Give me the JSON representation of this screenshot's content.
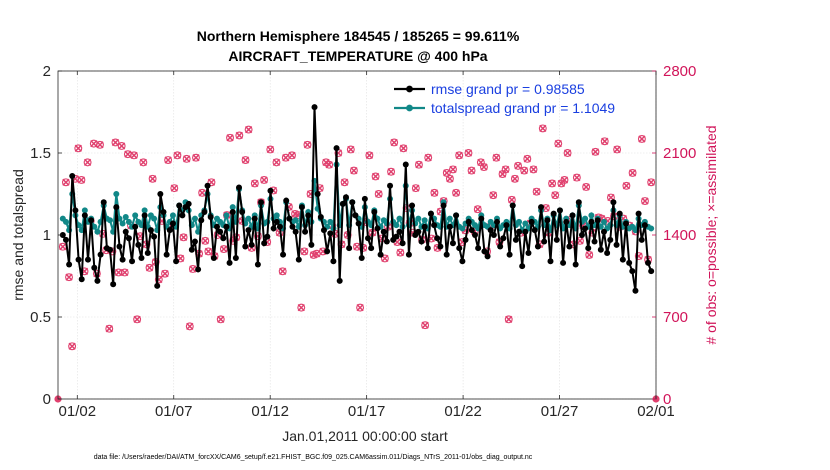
{
  "chart_data": {
    "type": "line",
    "title": "Northern Hemisphere 184545 / 185265 = 99.611%",
    "subtitle": "AIRCRAFT_TEMPERATURE @ 400 hPa",
    "xlabel": "Jan.01,2011 00:00:00 start",
    "ylabel_left": "rmse and totalspread",
    "ylabel_right": "# of obs: o=possible; ×=assimilated",
    "x_range": [
      0,
      31
    ],
    "y_left_range": [
      0,
      2
    ],
    "y_right_range": [
      0,
      2800
    ],
    "x_tick_positions": [
      1,
      6,
      11,
      16,
      21,
      26,
      31
    ],
    "x_tick_labels": [
      "01/02",
      "01/07",
      "01/12",
      "01/17",
      "01/22",
      "01/27",
      "02/01"
    ],
    "y_left_ticks": [
      0,
      0.5,
      1,
      1.5,
      2
    ],
    "y_left_tick_labels": [
      "0",
      "0.5",
      "1",
      "1.5",
      "2"
    ],
    "y_right_ticks": [
      0,
      700,
      1400,
      2100,
      2800
    ],
    "y_right_tick_labels": [
      "0",
      "700",
      "1400",
      "2100",
      "2800"
    ],
    "grid": true,
    "legend_position": "top-right",
    "footnote": "data file: /Users/raeder/DAI/ATM_forcXX/CAM6_setup/f.e21.FHIST_BGC.f09_025.CAM6assim.011/Diags_NTrS_2011-01/obs_diag_output.nc",
    "series": [
      {
        "name": "rmse grand pr = 0.98585",
        "color": "#000000",
        "axis": "left",
        "values": [
          1.0,
          0.97,
          0.82,
          1.36,
          1.15,
          0.85,
          0.73,
          1.12,
          0.85,
          1.09,
          0.8,
          0.72,
          0.88,
          1.2,
          0.92,
          0.91,
          0.7,
          1.17,
          0.93,
          0.85,
          1.02,
          0.98,
          0.84,
          1.05,
          0.94,
          0.86,
          1.12,
          0.89,
          1.03,
          0.99,
          0.69,
          1.25,
          1.14,
          0.88,
          1.03,
          1.07,
          0.84,
          1.18,
          1.12,
          1.17,
          1.19,
          0.91,
          0.96,
          0.79,
          1.09,
          1.14,
          1.3,
          1.11,
          0.86,
          1.05,
          1.02,
          0.98,
          1.05,
          0.83,
          1.14,
          0.86,
          1.29,
          1.14,
          0.93,
          1.03,
          0.94,
          1.1,
          0.82,
          1.2,
          0.95,
          0.99,
          1.27,
          1.04,
          1.08,
          1.05,
          0.88,
          1.21,
          1.1,
          1.05,
          1.02,
          0.85,
          1.17,
          1.02,
          1.12,
          0.94,
          1.78,
          1.25,
          1.11,
          1.03,
          0.9,
          1.01,
          0.84,
          1.53,
          0.72,
          1.19,
          1.23,
          0.92,
          1.2,
          1.12,
          1.07,
          0.86,
          1.22,
          0.98,
          0.92,
          1.14,
          1.04,
          0.88,
          1.02,
          0.96,
          1.3,
          0.97,
          0.99,
          1.02,
          0.95,
          1.43,
          0.88,
          1.18,
          1.0,
          1.02,
          0.96,
          1.05,
          0.92,
          1.13,
          1.06,
          0.98,
          0.93,
          1.18,
          0.88,
          1.05,
          0.95,
          1.12,
          0.92,
          0.84,
          0.97,
          1.08,
          1.03,
          1.0,
          0.92,
          1.1,
          0.9,
          0.87,
          1.03,
          1.0,
          1.08,
          0.93,
          0.98,
          1.06,
          0.88,
          1.18,
          0.97,
          1.02,
          0.81,
          1.02,
          0.89,
          1.08,
          1.03,
          0.93,
          1.17,
          0.96,
          1.09,
          0.84,
          1.13,
          0.97,
          1.15,
          0.83,
          1.08,
          0.93,
          1.12,
          0.82,
          1.2,
          1.0,
          1.04,
          0.92,
          1.08,
          0.96,
          1.09,
          0.91,
          1.02,
          0.89,
          0.97,
          1.2,
          0.94,
          1.13,
          0.85,
          1.07,
          0.83,
          0.78,
          0.66,
          1.13,
          0.97,
          1.06,
          0.83,
          0.78
        ]
      },
      {
        "name": "totalspread grand pr = 1.1049",
        "color": "#118888",
        "axis": "left",
        "values": [
          1.1,
          1.08,
          1.03,
          1.25,
          1.12,
          1.06,
          1.03,
          1.15,
          1.08,
          1.1,
          1.05,
          1.02,
          1.08,
          1.18,
          1.1,
          1.09,
          1.02,
          1.25,
          1.1,
          1.07,
          1.11,
          1.08,
          1.05,
          1.12,
          1.08,
          1.06,
          1.15,
          1.05,
          1.12,
          1.1,
          1.03,
          1.17,
          1.12,
          1.05,
          1.08,
          1.12,
          1.05,
          1.18,
          1.15,
          1.2,
          1.15,
          1.06,
          1.1,
          1.02,
          1.12,
          1.15,
          1.25,
          1.12,
          1.06,
          1.1,
          1.08,
          1.06,
          1.12,
          1.04,
          1.17,
          1.08,
          1.28,
          1.15,
          1.07,
          1.1,
          1.05,
          1.12,
          1.04,
          1.18,
          1.07,
          1.08,
          1.22,
          1.1,
          1.12,
          1.08,
          1.04,
          1.2,
          1.1,
          1.08,
          1.09,
          1.05,
          1.18,
          1.06,
          1.14,
          1.08,
          1.33,
          1.16,
          1.1,
          1.08,
          1.05,
          1.08,
          1.04,
          1.43,
          1.06,
          1.19,
          1.22,
          1.06,
          1.2,
          1.12,
          1.1,
          1.05,
          1.17,
          1.08,
          1.06,
          1.15,
          1.1,
          1.05,
          1.09,
          1.07,
          1.22,
          1.08,
          1.06,
          1.1,
          1.05,
          1.3,
          1.06,
          1.15,
          1.07,
          1.1,
          1.05,
          1.09,
          1.04,
          1.13,
          1.1,
          1.06,
          1.05,
          1.2,
          1.05,
          1.1,
          1.06,
          1.12,
          1.05,
          1.04,
          1.07,
          1.1,
          1.08,
          1.06,
          1.04,
          1.12,
          1.06,
          1.05,
          1.08,
          1.06,
          1.1,
          1.04,
          1.06,
          1.08,
          1.04,
          1.18,
          1.06,
          1.08,
          1.03,
          1.07,
          1.04,
          1.1,
          1.08,
          1.05,
          1.15,
          1.06,
          1.1,
          1.03,
          1.12,
          1.06,
          1.15,
          1.04,
          1.1,
          1.06,
          1.12,
          1.04,
          1.18,
          1.08,
          1.1,
          1.05,
          1.12,
          1.06,
          1.1,
          1.05,
          1.08,
          1.04,
          1.06,
          1.15,
          1.06,
          1.12,
          1.05,
          1.08,
          1.04,
          1.05,
          1.03,
          1.1,
          1.06,
          1.08,
          1.05,
          1.04
        ]
      },
      {
        "name": "observations possible",
        "marker": "o",
        "color": "#e0406e",
        "axis": "right",
        "values": [
          1300,
          1850,
          1040,
          450,
          1880,
          2140,
          1870,
          1090,
          2020,
          1520,
          2180,
          1070,
          2170,
          1410,
          1270,
          600,
          1260,
          2190,
          1080,
          2160,
          1080,
          2090,
          1480,
          2080,
          680,
          1390,
          2020,
          1320,
          1120,
          1880,
          1170,
          1020,
          1520,
          1070,
          2040,
          1480,
          1800,
          2080,
          1200,
          1380,
          2050,
          620,
          1110,
          2060,
          1240,
          1760,
          1350,
          1260,
          1850,
          1220,
          1400,
          680,
          1280,
          1570,
          2230,
          1350,
          1380,
          2250,
          1520,
          2040,
          2300,
          1290,
          1840,
          1390,
          1680,
          1870,
          1340,
          2130,
          1780,
          2020,
          1420,
          1090,
          2060,
          1640,
          2080,
          1580,
          1570,
          780,
          1260,
          2170,
          1750,
          1230,
          1240,
          1800,
          1260,
          2020,
          2000,
          1480,
          1410,
          2100,
          1320,
          1850,
          1400,
          2130,
          1950,
          1300,
          780,
          1290,
          1510,
          2080,
          1420,
          1900,
          1750,
          1370,
          1200,
          1470,
          1940,
          2190,
          1340,
          1250,
          2140,
          1630,
          1500,
          1420,
          1800,
          2000,
          1360,
          630,
          2060,
          1370,
          1760,
          1290,
          1600,
          1690,
          1930,
          1880,
          1960,
          1760,
          2080,
          1340,
          1440,
          2100,
          1950,
          1430,
          1620,
          2020,
          1980,
          1260,
          1470,
          1740,
          2060,
          1340,
          1920,
          1960,
          680,
          1700,
          1880,
          1990,
          1420,
          1950,
          2050,
          1500,
          1960,
          1770,
          1320,
          2310,
          1630,
          1420,
          1840,
          1740,
          2180,
          1840,
          1870,
          2100,
          1530,
          1320,
          1890,
          1350,
          1480,
          1810,
          1230,
          1420,
          2110,
          1550,
          1540,
          2200,
          1520,
          1720,
          1560,
          2130,
          1470,
          1540,
          1820,
          1480,
          1930,
          1430,
          1220,
          2220,
          1690,
          1190,
          1850
        ]
      },
      {
        "name": "observations assimilated",
        "marker": "x",
        "color": "#e0406e",
        "axis": "right",
        "values": [
          1300,
          1850,
          1040,
          450,
          1880,
          2140,
          1870,
          1090,
          2020,
          1520,
          2180,
          1070,
          2170,
          1410,
          1270,
          600,
          1260,
          2190,
          1080,
          2160,
          1080,
          2090,
          1480,
          2080,
          680,
          1390,
          2020,
          1320,
          1120,
          1880,
          1170,
          1020,
          1520,
          1070,
          2040,
          1480,
          1800,
          2080,
          1200,
          1380,
          2050,
          620,
          1110,
          2060,
          1240,
          1760,
          1350,
          1260,
          1850,
          1220,
          1400,
          680,
          1280,
          1570,
          2230,
          1350,
          1380,
          2250,
          1520,
          2040,
          2300,
          1290,
          1840,
          1390,
          1680,
          1870,
          1340,
          2130,
          1780,
          2020,
          1420,
          1090,
          2060,
          1640,
          2080,
          1580,
          1570,
          780,
          1260,
          2170,
          1750,
          1230,
          1240,
          1800,
          1260,
          2020,
          2000,
          1480,
          1410,
          2100,
          1320,
          1850,
          1400,
          2130,
          1950,
          1300,
          780,
          1290,
          1510,
          2080,
          1420,
          1900,
          1750,
          1370,
          1200,
          1470,
          1940,
          2190,
          1340,
          1250,
          2140,
          1630,
          1500,
          1420,
          1800,
          2000,
          1360,
          630,
          2060,
          1370,
          1760,
          1290,
          1600,
          1690,
          1930,
          1880,
          1960,
          1760,
          2080,
          1340,
          1440,
          2100,
          1950,
          1430,
          1620,
          2020,
          1980,
          1260,
          1470,
          1740,
          2060,
          1340,
          1920,
          1960,
          680,
          1700,
          1880,
          1990,
          1420,
          1950,
          2050,
          1500,
          1960,
          1770,
          1320,
          2310,
          1630,
          1420,
          1840,
          1740,
          2180,
          1840,
          1870,
          2100,
          1530,
          1320,
          1890,
          1350,
          1480,
          1810,
          1230,
          1420,
          2110,
          1550,
          1540,
          2200,
          1520,
          1720,
          1560,
          2130,
          1470,
          1540,
          1820,
          1480,
          1930,
          1430,
          1220,
          2220,
          1690,
          1190,
          1850
        ]
      }
    ]
  }
}
